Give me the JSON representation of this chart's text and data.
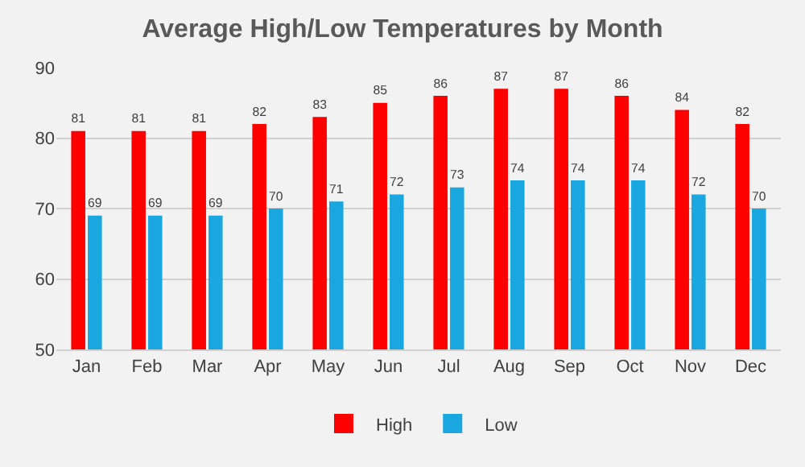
{
  "chart_data": {
    "type": "bar",
    "title": "Average High/Low Temperatures by Month",
    "categories": [
      "Jan",
      "Feb",
      "Mar",
      "Apr",
      "May",
      "Jun",
      "Jul",
      "Aug",
      "Sep",
      "Oct",
      "Nov",
      "Dec"
    ],
    "series": [
      {
        "name": "High",
        "color": "#ff0000",
        "values": [
          81,
          81,
          81,
          82,
          83,
          85,
          86,
          87,
          87,
          86,
          84,
          82
        ]
      },
      {
        "name": "Low",
        "color": "#1aa7e0",
        "values": [
          69,
          69,
          69,
          70,
          71,
          72,
          73,
          74,
          74,
          74,
          72,
          70
        ]
      }
    ],
    "ylim": [
      50,
      90
    ],
    "yticks": [
      50,
      60,
      70,
      80,
      90
    ],
    "grid": "y",
    "legend": "bottom",
    "data_labels": true
  }
}
